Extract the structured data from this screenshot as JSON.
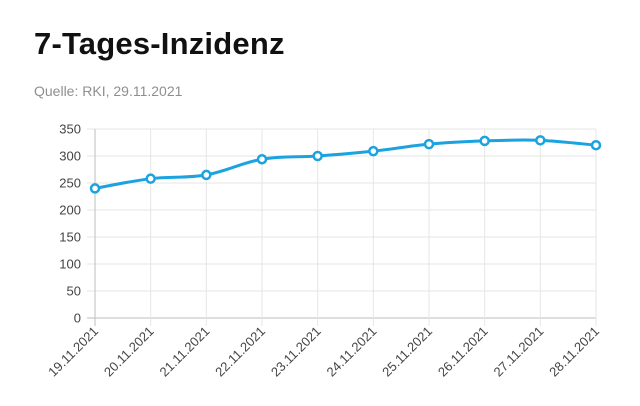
{
  "header": {
    "title": "7-Tages-Inzidenz",
    "source": "Quelle: RKI, 29.11.2021"
  },
  "colors": {
    "line": "#1ba3e0",
    "grid": "#e6e6e6",
    "axis": "#bdbdbd"
  },
  "chart_data": {
    "type": "line",
    "title": "7-Tages-Inzidenz",
    "xlabel": "",
    "ylabel": "",
    "categories": [
      "19.11.2021",
      "20.11.2021",
      "21.11.2021",
      "22.11.2021",
      "23.11.2021",
      "24.11.2021",
      "25.11.2021",
      "26.11.2021",
      "27.11.2021",
      "28.11.2021"
    ],
    "series": [
      {
        "values": [
          240,
          258,
          265,
          294,
          300,
          309,
          322,
          328,
          329,
          320
        ]
      }
    ],
    "ylim": [
      0,
      350
    ],
    "yticks": [
      0,
      50,
      100,
      150,
      200,
      250,
      300,
      350
    ],
    "grid": true,
    "legend": "none"
  }
}
